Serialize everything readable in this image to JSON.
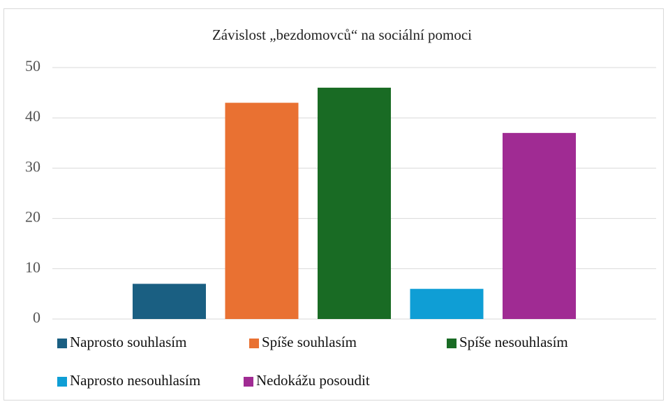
{
  "chart_data": {
    "type": "bar",
    "title": "Závislost „bezdomovců“ na sociální pomoci",
    "categories": [
      null
    ],
    "series": [
      {
        "name": "Naprosto souhlasím",
        "color": "#1a5f82",
        "values": [
          7
        ]
      },
      {
        "name": "Spíše souhlasím",
        "color": "#e97132",
        "values": [
          43
        ]
      },
      {
        "name": "Spíše nesouhlasím",
        "color": "#196b24",
        "values": [
          46
        ]
      },
      {
        "name": "Naprosto nesouhlasím",
        "color": "#0f9ed5",
        "values": [
          6
        ]
      },
      {
        "name": "Nedokážu posoudit",
        "color": "#a02b93",
        "values": [
          37
        ]
      }
    ],
    "ylim": [
      0,
      50
    ],
    "yticks": [
      0,
      10,
      20,
      30,
      40,
      50
    ],
    "grid": true,
    "legend": "bottom"
  }
}
